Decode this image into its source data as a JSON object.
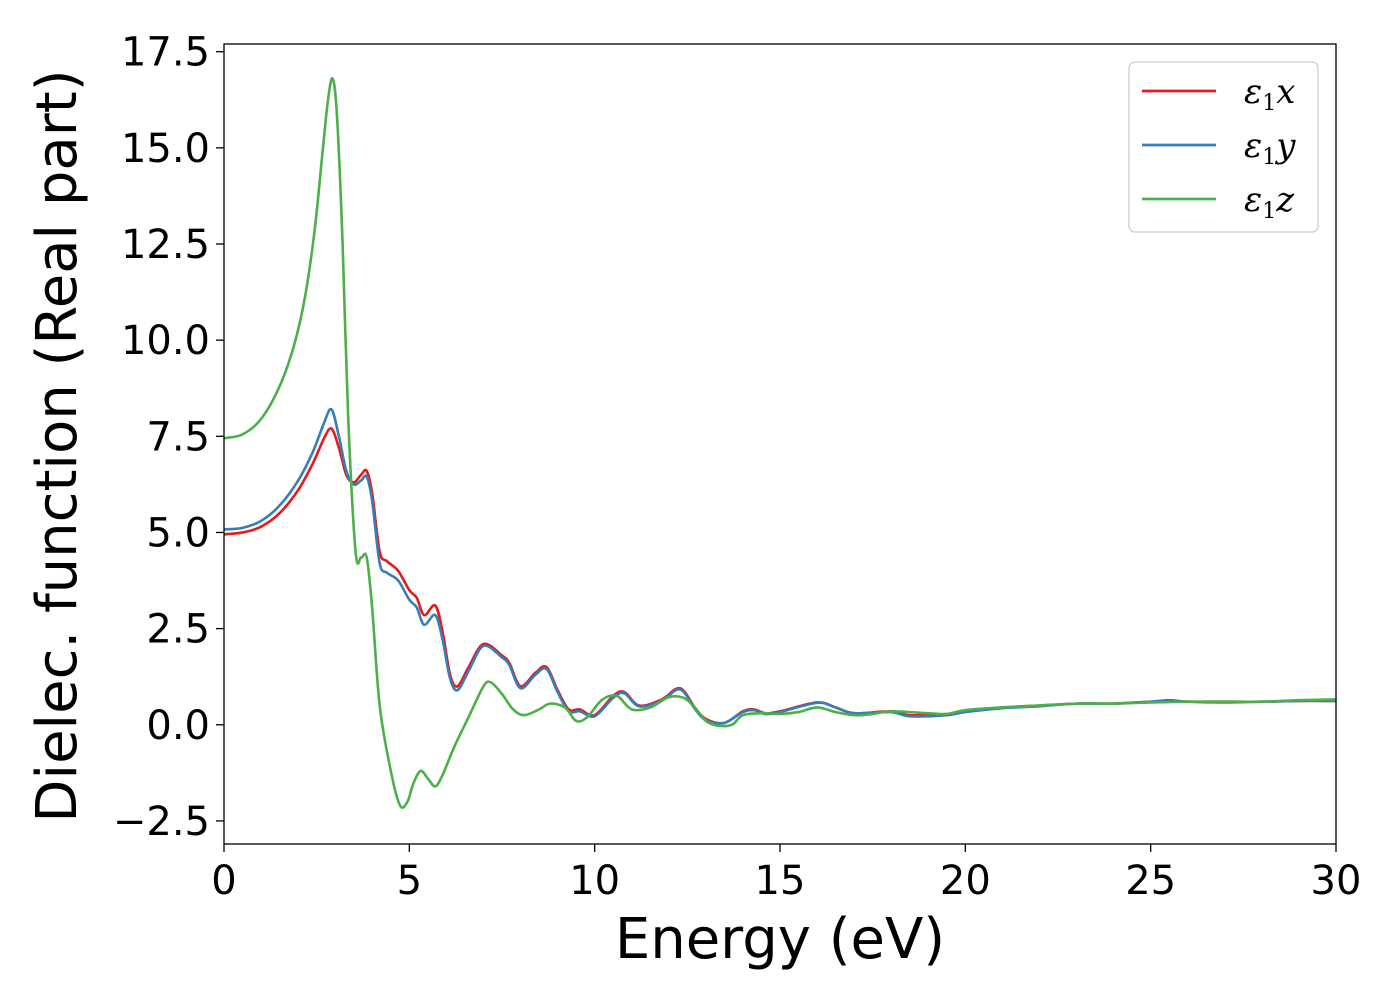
{
  "chart_data": {
    "type": "line",
    "xlabel": "Energy (eV)",
    "ylabel": "Dielec. function (Real part)",
    "xlim": [
      0,
      30
    ],
    "ylim": [
      -3.1,
      17.7
    ],
    "xticks": [
      0,
      5,
      10,
      15,
      20,
      25,
      30
    ],
    "xtick_labels": [
      "0",
      "5",
      "10",
      "15",
      "20",
      "25",
      "30"
    ],
    "yticks": [
      -2.5,
      0.0,
      2.5,
      5.0,
      7.5,
      10.0,
      12.5,
      15.0,
      17.5
    ],
    "ytick_labels": [
      "−2.5",
      "0.0",
      "2.5",
      "5.0",
      "7.5",
      "10.0",
      "12.5",
      "15.0",
      "17.5"
    ],
    "grid": false,
    "legend_position": "top-right",
    "series": [
      {
        "name": "ε1x",
        "legend": {
          "base": "ε",
          "sub": "1",
          "var": "x"
        },
        "color": "#e41a1c",
        "x": [
          0,
          0.5,
          1.0,
          1.5,
          2.0,
          2.4,
          2.7,
          2.9,
          3.1,
          3.3,
          3.5,
          3.7,
          3.85,
          4.0,
          4.2,
          4.4,
          4.7,
          5.0,
          5.2,
          5.4,
          5.7,
          5.9,
          6.1,
          6.3,
          6.6,
          7.0,
          7.5,
          7.7,
          8.0,
          8.4,
          8.7,
          9.0,
          9.3,
          9.6,
          10.0,
          10.5,
          10.8,
          11.2,
          11.8,
          12.3,
          12.7,
          13.0,
          13.5,
          14.0,
          14.3,
          14.6,
          15.0,
          16.0,
          16.5,
          17.0,
          18.0,
          18.5,
          19.5,
          20.0,
          21.0,
          22.0,
          23.0,
          24.0,
          25.0,
          25.5,
          26.0,
          27.0,
          28.0,
          29.0,
          30.0
        ],
        "y": [
          4.95,
          5.0,
          5.15,
          5.5,
          6.1,
          6.8,
          7.45,
          7.7,
          7.2,
          6.5,
          6.3,
          6.5,
          6.6,
          6.0,
          4.5,
          4.25,
          4.0,
          3.5,
          3.3,
          2.85,
          3.1,
          2.4,
          1.3,
          1.0,
          1.5,
          2.1,
          1.8,
          1.6,
          1.0,
          1.35,
          1.5,
          0.9,
          0.4,
          0.4,
          0.25,
          0.75,
          0.85,
          0.5,
          0.65,
          0.95,
          0.45,
          0.15,
          0.05,
          0.35,
          0.4,
          0.3,
          0.35,
          0.58,
          0.45,
          0.3,
          0.35,
          0.25,
          0.28,
          0.35,
          0.45,
          0.5,
          0.55,
          0.55,
          0.6,
          0.62,
          0.6,
          0.6,
          0.6,
          0.62,
          0.62
        ]
      },
      {
        "name": "ε1y",
        "legend": {
          "base": "ε",
          "sub": "1",
          "var": "y"
        },
        "color": "#377eb8",
        "x": [
          0,
          0.5,
          1.0,
          1.5,
          2.0,
          2.4,
          2.7,
          2.9,
          3.1,
          3.3,
          3.5,
          3.7,
          3.85,
          4.0,
          4.2,
          4.4,
          4.7,
          5.0,
          5.2,
          5.4,
          5.7,
          5.9,
          6.1,
          6.3,
          6.6,
          7.0,
          7.5,
          7.7,
          8.0,
          8.4,
          8.7,
          9.0,
          9.3,
          9.6,
          10.0,
          10.5,
          10.8,
          11.2,
          11.8,
          12.3,
          12.7,
          13.0,
          13.5,
          14.0,
          14.3,
          14.6,
          15.0,
          16.0,
          16.5,
          17.0,
          18.0,
          18.5,
          19.5,
          20.0,
          21.0,
          22.0,
          23.0,
          24.0,
          25.0,
          25.5,
          26.0,
          27.0,
          28.0,
          29.0,
          30.0
        ],
        "y": [
          5.08,
          5.12,
          5.3,
          5.7,
          6.35,
          7.1,
          7.85,
          8.2,
          7.5,
          6.6,
          6.25,
          6.35,
          6.45,
          5.8,
          4.2,
          3.95,
          3.75,
          3.25,
          3.05,
          2.6,
          2.85,
          2.2,
          1.2,
          0.9,
          1.4,
          2.05,
          1.75,
          1.55,
          0.95,
          1.3,
          1.45,
          0.85,
          0.35,
          0.35,
          0.22,
          0.7,
          0.82,
          0.48,
          0.62,
          0.92,
          0.42,
          0.12,
          0.05,
          0.33,
          0.38,
          0.28,
          0.33,
          0.57,
          0.45,
          0.3,
          0.33,
          0.22,
          0.25,
          0.33,
          0.43,
          0.48,
          0.55,
          0.55,
          0.6,
          0.64,
          0.6,
          0.58,
          0.6,
          0.62,
          0.62
        ]
      },
      {
        "name": "ε1z",
        "legend": {
          "base": "ε",
          "sub": "1",
          "var": "z"
        },
        "color": "#4daf4a",
        "x": [
          0,
          0.5,
          1.0,
          1.5,
          1.9,
          2.2,
          2.45,
          2.65,
          2.8,
          2.93,
          3.05,
          3.2,
          3.35,
          3.55,
          3.7,
          3.85,
          4.0,
          4.2,
          4.5,
          4.75,
          4.95,
          5.1,
          5.3,
          5.5,
          5.7,
          5.9,
          6.2,
          6.6,
          7.0,
          7.2,
          7.5,
          7.8,
          8.1,
          8.5,
          8.8,
          9.2,
          9.5,
          9.8,
          10.2,
          10.6,
          11.0,
          11.5,
          12.0,
          12.4,
          12.7,
          13.0,
          13.3,
          13.7,
          14.0,
          14.5,
          15.0,
          15.5,
          16.0,
          16.5,
          17.0,
          17.5,
          18.0,
          19.0,
          19.5,
          20.0,
          21.0,
          22.0,
          23.0,
          24.0,
          25.0,
          26.0,
          27.0,
          28.0,
          29.0,
          30.0
        ],
        "y": [
          7.45,
          7.55,
          7.95,
          8.8,
          9.9,
          11.2,
          12.9,
          14.8,
          16.2,
          16.8,
          15.8,
          12.5,
          8.0,
          4.5,
          4.35,
          4.35,
          3.0,
          0.5,
          -1.2,
          -2.1,
          -2.0,
          -1.55,
          -1.2,
          -1.4,
          -1.6,
          -1.3,
          -0.6,
          0.2,
          1.0,
          1.1,
          0.8,
          0.4,
          0.25,
          0.4,
          0.55,
          0.45,
          0.1,
          0.2,
          0.65,
          0.75,
          0.4,
          0.45,
          0.72,
          0.7,
          0.45,
          0.1,
          -0.02,
          0.0,
          0.25,
          0.3,
          0.28,
          0.33,
          0.45,
          0.33,
          0.25,
          0.28,
          0.35,
          0.3,
          0.28,
          0.38,
          0.45,
          0.5,
          0.55,
          0.55,
          0.58,
          0.6,
          0.6,
          0.6,
          0.64,
          0.66
        ]
      }
    ]
  }
}
